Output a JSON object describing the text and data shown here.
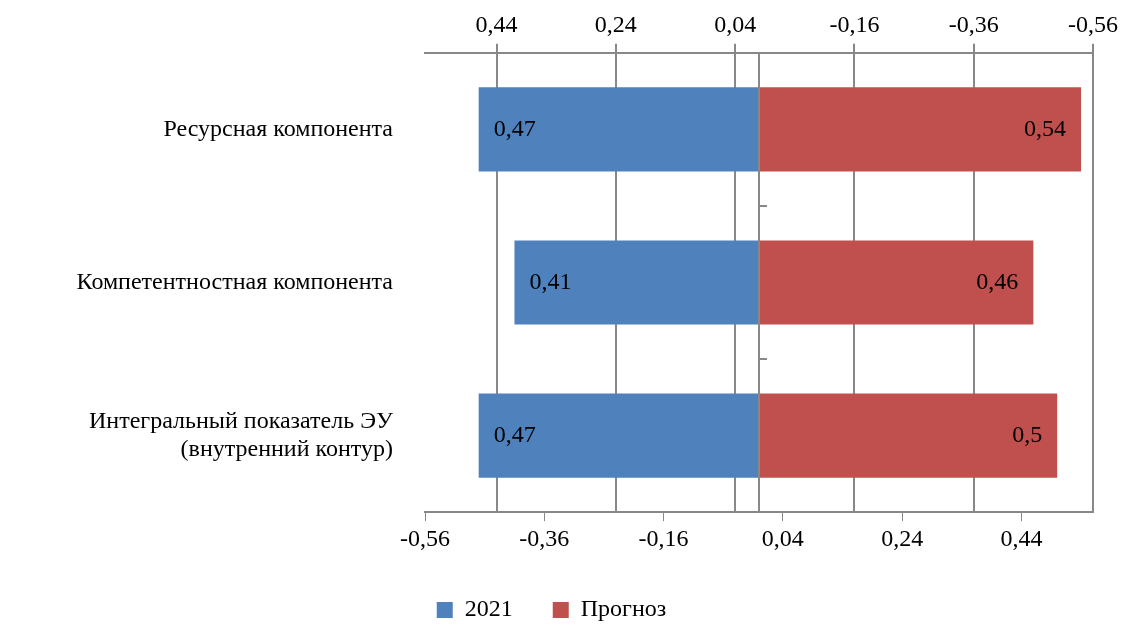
{
  "chart_data": {
    "type": "bar",
    "orientation": "horizontal",
    "categories": [
      "Ресурсная компонента",
      "Компетентностная компонента",
      "Интегральный показатель ЭУ (внутренний контур)"
    ],
    "series": [
      {
        "name": "2021",
        "color": "#4f81bd",
        "base": [
          -0.47,
          -0.41,
          -0.47
        ],
        "values": [
          0.47,
          0.41,
          0.47
        ],
        "value_labels": [
          "0,47",
          "0,41",
          "0,47"
        ]
      },
      {
        "name": "Прогноз",
        "color": "#c0504d",
        "values": [
          0.54,
          0.46,
          0.5
        ],
        "value_labels": [
          "0,54",
          "0,46",
          "0,5"
        ]
      }
    ],
    "xlim": [
      -0.56,
      0.56
    ],
    "xticks": [
      {
        "value": -0.56,
        "label": "-0,56"
      },
      {
        "value": -0.36,
        "label": "-0,36"
      },
      {
        "value": -0.16,
        "label": "-0,16"
      },
      {
        "value": 0.04,
        "label": "0,04"
      },
      {
        "value": 0.24,
        "label": "0,24"
      },
      {
        "value": 0.44,
        "label": "0,44"
      }
    ],
    "x2lim": [
      0.56,
      -0.56
    ],
    "x2ticks": [
      {
        "value": 0.44,
        "label": "0,44"
      },
      {
        "value": 0.24,
        "label": "0,24"
      },
      {
        "value": 0.04,
        "label": "0,04"
      },
      {
        "value": -0.16,
        "label": "-0,16"
      },
      {
        "value": -0.36,
        "label": "-0,36"
      },
      {
        "value": -0.56,
        "label": "-0,56"
      }
    ],
    "grid": true,
    "legend": "bottom"
  }
}
